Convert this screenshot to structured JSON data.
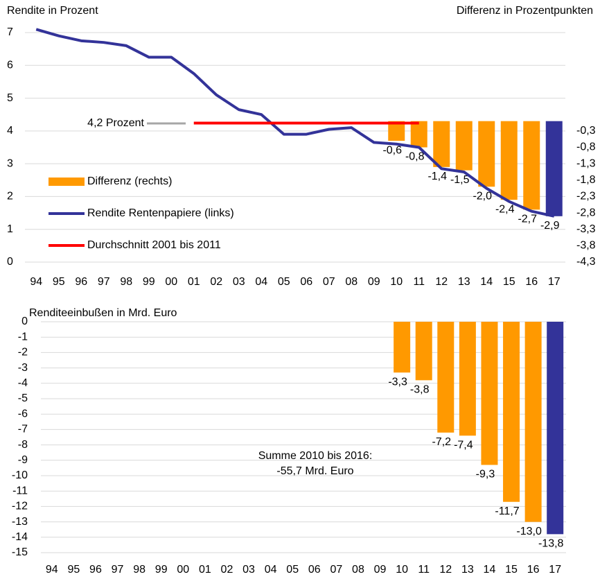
{
  "chart_data": [
    {
      "type": "bar_line",
      "ylabel": "Rendite in Prozent",
      "y2label": "Differenz in Prozentpunkten",
      "categories": [
        "94",
        "95",
        "96",
        "97",
        "98",
        "99",
        "00",
        "01",
        "02",
        "03",
        "04",
        "05",
        "06",
        "07",
        "08",
        "09",
        "10",
        "11",
        "12",
        "13",
        "14",
        "15",
        "16",
        "17"
      ],
      "ylim": [
        0,
        7
      ],
      "yticks": [
        0,
        1,
        2,
        3,
        4,
        5,
        6,
        7
      ],
      "y2lim": [
        -4.3,
        2.7
      ],
      "y2ticks": [
        {
          "value": -0.3,
          "label": "-0,3"
        },
        {
          "value": -0.8,
          "label": "-0,8"
        },
        {
          "value": -1.3,
          "label": "-1,3"
        },
        {
          "value": -1.8,
          "label": "-1,8"
        },
        {
          "value": -2.3,
          "label": "-2,3"
        },
        {
          "value": -2.8,
          "label": "-2,8"
        },
        {
          "value": -3.3,
          "label": "-3,3"
        },
        {
          "value": -3.8,
          "label": "-3,8"
        },
        {
          "value": -4.3,
          "label": "-4,3"
        }
      ],
      "grid": true,
      "annotation": "4,2 Prozent",
      "series": [
        {
          "name": "Differenz (rechts)",
          "kind": "bar",
          "axis": "y2",
          "color": "#FF9900",
          "last_color": "#333399",
          "values": [
            null,
            null,
            null,
            null,
            null,
            null,
            null,
            null,
            null,
            null,
            null,
            null,
            null,
            null,
            null,
            null,
            -0.6,
            -0.8,
            -1.4,
            -1.5,
            -2.0,
            -2.4,
            -2.7,
            -2.9
          ],
          "value_labels": [
            null,
            null,
            null,
            null,
            null,
            null,
            null,
            null,
            null,
            null,
            null,
            null,
            null,
            null,
            null,
            null,
            "-0,6",
            "-0,8",
            "-1,4",
            "-1,5",
            "-2,0",
            "-2,4",
            "-2,7",
            "-2,9"
          ]
        },
        {
          "name": "Rendite Rentenpapiere (links)",
          "kind": "line",
          "color": "#333399",
          "values": [
            7.1,
            6.9,
            6.75,
            6.7,
            6.6,
            6.25,
            6.25,
            5.75,
            5.1,
            4.65,
            4.5,
            3.9,
            3.9,
            4.05,
            4.1,
            3.65,
            3.6,
            3.5,
            2.85,
            2.75,
            2.25,
            1.85,
            1.55,
            1.4
          ]
        },
        {
          "name": "Durchschnitt 2001 bis 2011",
          "kind": "line",
          "color": "#FF0000",
          "values": [
            null,
            null,
            null,
            null,
            null,
            null,
            null,
            4.24,
            4.24,
            4.24,
            4.24,
            4.24,
            4.24,
            4.24,
            4.24,
            4.24,
            4.24,
            4.24,
            null,
            null,
            null,
            null,
            null,
            null
          ]
        }
      ]
    },
    {
      "type": "bar",
      "ylabel": "Renditeeinbußen in Mrd. Euro",
      "categories": [
        "94",
        "95",
        "96",
        "97",
        "98",
        "99",
        "00",
        "01",
        "02",
        "03",
        "04",
        "05",
        "06",
        "07",
        "08",
        "09",
        "10",
        "11",
        "12",
        "13",
        "14",
        "15",
        "16",
        "17"
      ],
      "ylim": [
        -15,
        0
      ],
      "yticks": [
        0,
        -1,
        -2,
        -3,
        -4,
        -5,
        -6,
        -7,
        -8,
        -9,
        -10,
        -11,
        -12,
        -13,
        -14,
        -15
      ],
      "grid": true,
      "annotation": [
        "Summe 2010 bis 2016:",
        "-55,7 Mrd. Euro"
      ],
      "color": "#FF9900",
      "last_color": "#333399",
      "values": [
        null,
        null,
        null,
        null,
        null,
        null,
        null,
        null,
        null,
        null,
        null,
        null,
        null,
        null,
        null,
        null,
        -3.3,
        -3.8,
        -7.2,
        -7.4,
        -9.3,
        -11.7,
        -13.0,
        -13.8
      ],
      "value_labels": [
        null,
        null,
        null,
        null,
        null,
        null,
        null,
        null,
        null,
        null,
        null,
        null,
        null,
        null,
        null,
        null,
        "-3,3",
        "-3,8",
        "-7,2",
        "-7,4",
        "-9,3",
        "-11,7",
        "-13,0",
        "-13,8"
      ]
    }
  ]
}
